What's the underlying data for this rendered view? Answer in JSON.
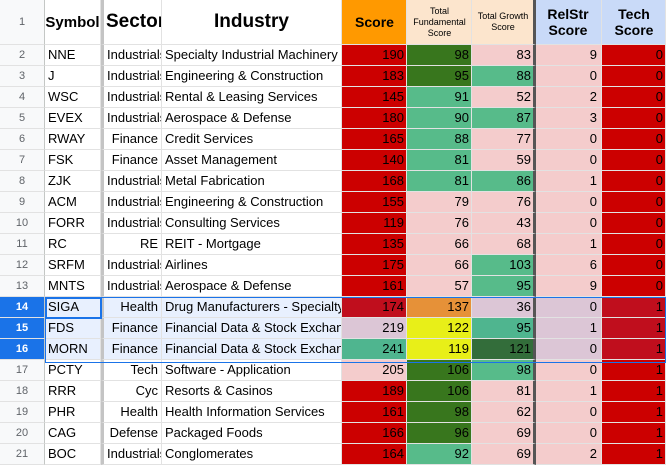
{
  "sheet": {
    "headers": {
      "row_number": "1",
      "symbol": "Symbol",
      "sector": "Sector",
      "industry": "Industry",
      "score": "Score",
      "total_fundamental": "Total Fundamental Score",
      "total_growth": "Total Growth Score",
      "relstr": "RelStr Score",
      "tech": "Tech Score"
    },
    "selected_rows": [
      "14",
      "15",
      "16"
    ],
    "active_cell": "SIGA",
    "rows": [
      {
        "n": "2",
        "symbol": "NNE",
        "sector": "Industrials",
        "industry": "Specialty Industrial Machinery",
        "score": "190",
        "fund": "98",
        "growth": "83",
        "relstr": "9",
        "tech": "0",
        "c": [
          "#cc0000",
          "#38761d",
          "#f4cccc",
          "#f4cccc",
          "#cc0000"
        ]
      },
      {
        "n": "3",
        "symbol": "J",
        "sector": "Industrials",
        "industry": "Engineering & Construction",
        "score": "183",
        "fund": "95",
        "growth": "88",
        "relstr": "0",
        "tech": "0",
        "c": [
          "#cc0000",
          "#38761d",
          "#57bb8a",
          "#f4cccc",
          "#cc0000"
        ]
      },
      {
        "n": "4",
        "symbol": "WSC",
        "sector": "Industrials",
        "industry": "Rental & Leasing Services",
        "score": "145",
        "fund": "91",
        "growth": "52",
        "relstr": "2",
        "tech": "0",
        "c": [
          "#cc0000",
          "#57bb8a",
          "#f4cccc",
          "#f4cccc",
          "#cc0000"
        ]
      },
      {
        "n": "5",
        "symbol": "EVEX",
        "sector": "Industrials",
        "industry": "Aerospace & Defense",
        "score": "180",
        "fund": "90",
        "growth": "87",
        "relstr": "3",
        "tech": "0",
        "c": [
          "#cc0000",
          "#57bb8a",
          "#57bb8a",
          "#f4cccc",
          "#cc0000"
        ]
      },
      {
        "n": "6",
        "symbol": "RWAY",
        "sector": "Finance",
        "industry": "Credit Services",
        "score": "165",
        "fund": "88",
        "growth": "77",
        "relstr": "0",
        "tech": "0",
        "c": [
          "#cc0000",
          "#57bb8a",
          "#f4cccc",
          "#f4cccc",
          "#cc0000"
        ]
      },
      {
        "n": "7",
        "symbol": "FSK",
        "sector": "Finance",
        "industry": "Asset Management",
        "score": "140",
        "fund": "81",
        "growth": "59",
        "relstr": "0",
        "tech": "0",
        "c": [
          "#cc0000",
          "#57bb8a",
          "#f4cccc",
          "#f4cccc",
          "#cc0000"
        ]
      },
      {
        "n": "8",
        "symbol": "ZJK",
        "sector": "Industrials",
        "industry": "Metal Fabrication",
        "score": "168",
        "fund": "81",
        "growth": "86",
        "relstr": "1",
        "tech": "0",
        "c": [
          "#cc0000",
          "#57bb8a",
          "#57bb8a",
          "#f4cccc",
          "#cc0000"
        ]
      },
      {
        "n": "9",
        "symbol": "ACM",
        "sector": "Industrials",
        "industry": "Engineering & Construction",
        "score": "155",
        "fund": "79",
        "growth": "76",
        "relstr": "0",
        "tech": "0",
        "c": [
          "#cc0000",
          "#f4cccc",
          "#f4cccc",
          "#f4cccc",
          "#cc0000"
        ]
      },
      {
        "n": "10",
        "symbol": "FORR",
        "sector": "Industrials",
        "industry": "Consulting Services",
        "score": "119",
        "fund": "76",
        "growth": "43",
        "relstr": "0",
        "tech": "0",
        "c": [
          "#cc0000",
          "#f4cccc",
          "#f4cccc",
          "#f4cccc",
          "#cc0000"
        ]
      },
      {
        "n": "11",
        "symbol": "RC",
        "sector": "RE",
        "industry": "REIT - Mortgage",
        "score": "135",
        "fund": "66",
        "growth": "68",
        "relstr": "1",
        "tech": "0",
        "c": [
          "#cc0000",
          "#f4cccc",
          "#f4cccc",
          "#f4cccc",
          "#cc0000"
        ]
      },
      {
        "n": "12",
        "symbol": "SRFM",
        "sector": "Industrials",
        "industry": "Airlines",
        "score": "175",
        "fund": "66",
        "growth": "103",
        "relstr": "6",
        "tech": "0",
        "c": [
          "#cc0000",
          "#f4cccc",
          "#57bb8a",
          "#f4cccc",
          "#cc0000"
        ]
      },
      {
        "n": "13",
        "symbol": "MNTS",
        "sector": "Industrials",
        "industry": "Aerospace & Defense",
        "score": "161",
        "fund": "57",
        "growth": "95",
        "relstr": "9",
        "tech": "0",
        "c": [
          "#cc0000",
          "#f4cccc",
          "#57bb8a",
          "#f4cccc",
          "#cc0000"
        ]
      },
      {
        "n": "14",
        "symbol": "SIGA",
        "sector": "Health",
        "industry": "Drug Manufacturers - Specialty & Generic",
        "score": "174",
        "fund": "137",
        "growth": "36",
        "relstr": "0",
        "tech": "1",
        "c": [
          "#c00e1d",
          "#e69138",
          "#dcc6d6",
          "#dcc6d6",
          "#c00e1d"
        ]
      },
      {
        "n": "15",
        "symbol": "FDS",
        "sector": "Finance",
        "industry": "Financial Data & Stock Exchanges",
        "score": "219",
        "fund": "122",
        "growth": "95",
        "relstr": "1",
        "tech": "1",
        "c": [
          "#dcc6d6",
          "#e8ef18",
          "#4fb58f",
          "#dcc6d6",
          "#c00e1d"
        ]
      },
      {
        "n": "16",
        "symbol": "MORN",
        "sector": "Finance",
        "industry": "Financial Data & Stock Exchanges",
        "score": "241",
        "fund": "119",
        "growth": "121",
        "relstr": "0",
        "tech": "1",
        "c": [
          "#4fb58f",
          "#e8ef18",
          "#336d3a",
          "#dcc6d6",
          "#c00e1d"
        ]
      },
      {
        "n": "17",
        "symbol": "PCTY",
        "sector": "Tech",
        "industry": "Software - Application",
        "score": "205",
        "fund": "106",
        "growth": "98",
        "relstr": "0",
        "tech": "1",
        "c": [
          "#f4cccc",
          "#38761d",
          "#57bb8a",
          "#f4cccc",
          "#cc0000"
        ]
      },
      {
        "n": "18",
        "symbol": "RRR",
        "sector": "Cyc",
        "industry": "Resorts & Casinos",
        "score": "189",
        "fund": "106",
        "growth": "81",
        "relstr": "1",
        "tech": "1",
        "c": [
          "#cc0000",
          "#38761d",
          "#f4cccc",
          "#f4cccc",
          "#cc0000"
        ]
      },
      {
        "n": "19",
        "symbol": "PHR",
        "sector": "Health",
        "industry": "Health Information Services",
        "score": "161",
        "fund": "98",
        "growth": "62",
        "relstr": "0",
        "tech": "1",
        "c": [
          "#cc0000",
          "#38761d",
          "#f4cccc",
          "#f4cccc",
          "#cc0000"
        ]
      },
      {
        "n": "20",
        "symbol": "CAG",
        "sector": "Defense",
        "industry": "Packaged Foods",
        "score": "166",
        "fund": "96",
        "growth": "69",
        "relstr": "0",
        "tech": "1",
        "c": [
          "#cc0000",
          "#38761d",
          "#f4cccc",
          "#f4cccc",
          "#cc0000"
        ]
      },
      {
        "n": "21",
        "symbol": "BOC",
        "sector": "Industrials",
        "industry": "Conglomerates",
        "score": "164",
        "fund": "92",
        "growth": "69",
        "relstr": "2",
        "tech": "1",
        "c": [
          "#cc0000",
          "#57bb8a",
          "#f4cccc",
          "#f4cccc",
          "#cc0000"
        ]
      }
    ]
  }
}
